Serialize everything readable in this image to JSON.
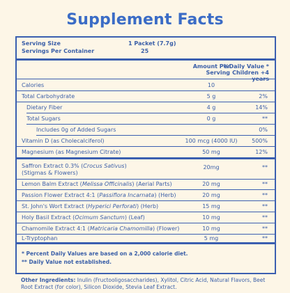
{
  "title": "Supplement Facts",
  "serving_size_label": "Serving Size",
  "serving_size_value": "1 Packet (7.7g)",
  "servings_label": "Servings Per Container",
  "servings_value": "25",
  "col_amount": "Amount Per Serving",
  "col_dv": "%Daily Value * Children +4 years",
  "rows": [
    {
      "label": "Calories",
      "amount": "10",
      "dv": ""
    },
    {
      "label": "Total Carbohydrate",
      "amount": "5 g",
      "dv": "2%"
    },
    {
      "label": "Dietary Fiber",
      "amount": "4 g",
      "dv": "14%"
    },
    {
      "label": "Total Sugars",
      "amount": "0 g",
      "dv": "**"
    },
    {
      "label": "Includes 0g of Added Sugars",
      "amount": "",
      "dv": "0%"
    },
    {
      "label": "Vitamin D (as Cholecalciferol)",
      "amount": "100 mcg (4000 IU)",
      "dv": "500%"
    },
    {
      "label": "Magnesium (as Magnesium Citrate)",
      "amount": "50 mg",
      "dv": "12%"
    },
    {
      "label_a": "Saffron Extract 0.3% (",
      "label_i": "Crocus Sativus",
      "label_b": ")",
      "label2": "(Stigmas & Flowers)",
      "amount": "20mg",
      "dv": "**"
    },
    {
      "label_a": "Lemon Balm Extract (",
      "label_i": "Melissa Officinalis",
      "label_b": ") (Aerial Parts)",
      "amount": "20 mg",
      "dv": "**"
    },
    {
      "label_a": "Passion Flower Extract 4:1 (",
      "label_i": "Passiflora Incarnata",
      "label_b": ") (Herb)",
      "amount": "20 mg",
      "dv": "**"
    },
    {
      "label_a": "St. John's Wort Extract (",
      "label_i": "Hyperici Perforati",
      "label_b": ") (Herb)",
      "amount": "15 mg",
      "dv": "**"
    },
    {
      "label_a": "Holy Basil Extract (",
      "label_i": "Ocimum Sanctum",
      "label_b": ") (Leaf)",
      "amount": "10 mg",
      "dv": "**"
    },
    {
      "label_a": "Chamomile Extract 4:1 (",
      "label_i": "Matricaria Chamomilla",
      "label_b": ") (Flower)",
      "amount": "10 mg",
      "dv": "**"
    },
    {
      "label": "L-Tryptophan",
      "amount": "5 mg",
      "dv": "**"
    }
  ],
  "footnote1": "* Percent Daily Values are based on a 2,000 calorie diet.",
  "footnote2": "** Daily Value not established.",
  "other_label": "Other Ingredients:",
  "other_text": " Inulin (Fructooligosaccharides), Xylitol, Citric Acid, Natural Flavors, Beet Root Extract (for color), Silicon Dioxide, Stevia Leaf Extract."
}
